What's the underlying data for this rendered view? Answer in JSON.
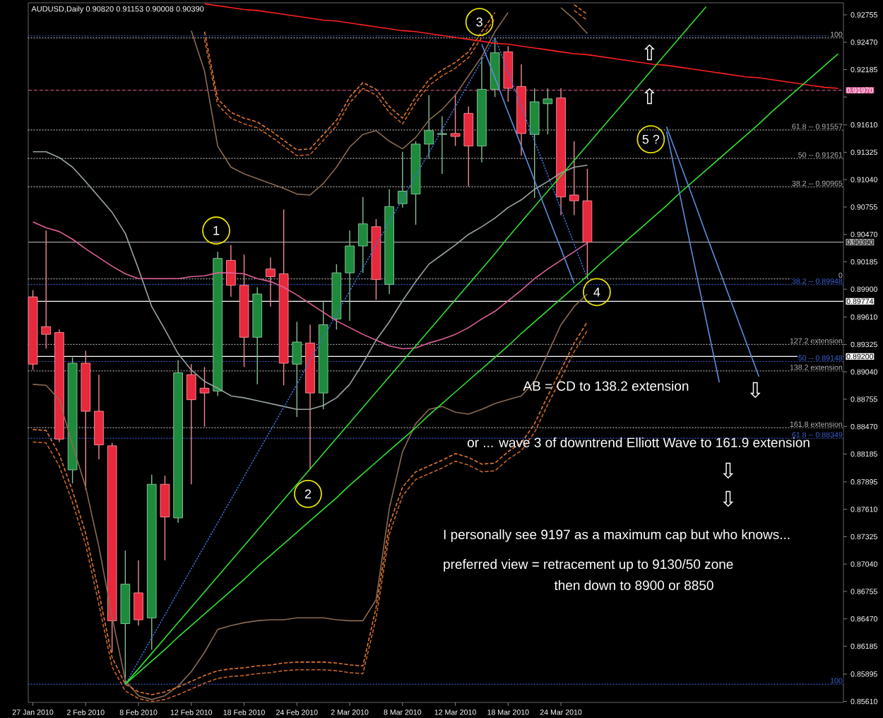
{
  "chart_data": {
    "type": "candlestick",
    "title": "AUDUSD,Daily 0.90820 0.91153 0.90008 0.90390",
    "categories": [
      "27 Jan 2010",
      null,
      null,
      null,
      "2 Feb 2010",
      null,
      null,
      null,
      "8 Feb 2010",
      null,
      null,
      null,
      "12 Feb 2010",
      null,
      null,
      null,
      "18 Feb 2010",
      null,
      null,
      null,
      "24 Feb 2010",
      null,
      null,
      null,
      "2 Mar 2010",
      null,
      null,
      null,
      "8 Mar 2010",
      null,
      null,
      null,
      "12 Mar 2010",
      null,
      null,
      null,
      "18 Mar 2010",
      null,
      null,
      null,
      "24 Mar 2010",
      null,
      null,
      null,
      null,
      null,
      null,
      null,
      null,
      null,
      null,
      null,
      null,
      null,
      null,
      null,
      null,
      null,
      null,
      null,
      null,
      null
    ],
    "ohlc": [
      [
        0.8982,
        0.8989,
        0.8906,
        0.8912
      ],
      [
        0.8951,
        0.9051,
        0.8928,
        0.8943
      ],
      [
        0.8945,
        0.8948,
        0.8831,
        0.8834
      ],
      [
        0.8802,
        0.8919,
        0.8788,
        0.8913
      ],
      [
        0.8913,
        0.8926,
        0.8781,
        0.8863
      ],
      [
        0.8863,
        0.8901,
        0.8813,
        0.8828
      ],
      [
        0.8827,
        0.883,
        0.8612,
        0.8645
      ],
      [
        0.8642,
        0.8718,
        0.8579,
        0.8683
      ],
      [
        0.8674,
        0.8708,
        0.864,
        0.8646
      ],
      [
        0.8648,
        0.8797,
        0.8615,
        0.8787
      ],
      [
        0.8787,
        0.8796,
        0.8708,
        0.8753
      ],
      [
        0.8752,
        0.8916,
        0.8747,
        0.8903
      ],
      [
        0.8901,
        0.8912,
        0.8787,
        0.8875
      ],
      [
        0.8887,
        0.8909,
        0.8847,
        0.8882
      ],
      [
        0.8884,
        0.9029,
        0.8879,
        0.9022
      ],
      [
        0.902,
        0.9036,
        0.8982,
        0.8994
      ],
      [
        0.8994,
        0.9026,
        0.8909,
        0.894
      ],
      [
        0.894,
        0.8992,
        0.8891,
        0.8985
      ],
      [
        0.9011,
        0.9023,
        0.8972,
        0.9003
      ],
      [
        0.9006,
        0.9073,
        0.889,
        0.8913
      ],
      [
        0.8912,
        0.8956,
        0.8857,
        0.8935
      ],
      [
        0.8934,
        0.8953,
        0.8803,
        0.8882
      ],
      [
        0.8882,
        0.8978,
        0.8865,
        0.8953
      ],
      [
        0.8959,
        0.9016,
        0.8948,
        0.9007
      ],
      [
        0.9007,
        0.9051,
        0.8957,
        0.9035
      ],
      [
        0.9035,
        0.9086,
        0.9007,
        0.9058
      ],
      [
        0.9055,
        0.9063,
        0.8979,
        0.9
      ],
      [
        0.8995,
        0.9094,
        0.8985,
        0.9076
      ],
      [
        0.9079,
        0.9133,
        0.9075,
        0.9092
      ],
      [
        0.9089,
        0.9144,
        0.9057,
        0.9141
      ],
      [
        0.9141,
        0.9192,
        0.9126,
        0.9155
      ],
      [
        0.9151,
        0.917,
        0.911,
        0.9152
      ],
      [
        0.9152,
        0.9193,
        0.9139,
        0.9149
      ],
      [
        0.9173,
        0.918,
        0.9097,
        0.9139
      ],
      [
        0.9139,
        0.9232,
        0.9122,
        0.9198
      ],
      [
        0.9198,
        0.9252,
        0.919,
        0.9236
      ],
      [
        0.9237,
        0.9243,
        0.9185,
        0.9199
      ],
      [
        0.9201,
        0.9224,
        0.9129,
        0.9152
      ],
      [
        0.9151,
        0.9199,
        0.9085,
        0.9185
      ],
      [
        0.9183,
        0.9199,
        0.9151,
        0.9188
      ],
      [
        0.9189,
        0.9199,
        0.9067,
        0.9086
      ],
      [
        0.9088,
        0.9144,
        0.9067,
        0.9082
      ],
      [
        0.9082,
        0.91153,
        0.90008,
        0.9039
      ],
      null,
      null,
      null,
      null,
      null,
      null,
      null,
      null,
      null,
      null,
      null,
      null,
      null,
      null,
      null,
      null,
      null,
      null,
      null
    ],
    "colors": [
      "#e8283c",
      "#e8283c",
      "#e8283c",
      "#1e8a3c",
      "#e8283c",
      "#e8283c",
      "#e8283c",
      "#1e8a3c",
      "#e8283c",
      "#1e8a3c",
      "#e8283c",
      "#1e8a3c",
      "#e8283c",
      "#e8283c",
      "#1e8a3c",
      "#e8283c",
      "#e8283c",
      "#1e8a3c",
      "#e8283c",
      "#e8283c",
      "#1e8a3c",
      "#e8283c",
      "#1e8a3c",
      "#1e8a3c",
      "#1e8a3c",
      "#1e8a3c",
      "#e8283c",
      "#1e8a3c",
      "#1e8a3c",
      "#1e8a3c",
      "#1e8a3c",
      "#1e8a3c",
      "#e8283c",
      "#e8283c",
      "#1e8a3c",
      "#1e8a3c",
      "#e8283c",
      "#e8283c",
      "#1e8a3c",
      "#1e8a3c",
      "#e8283c",
      "#e8283c",
      "#e8283c",
      null,
      null,
      null,
      null,
      null,
      null,
      null,
      null,
      null,
      null,
      null,
      null,
      null,
      null,
      null,
      null,
      null,
      null,
      null
    ],
    "ylim": [
      0.856,
      0.9288
    ],
    "yticks": [
      {
        "value": 0.92755,
        "label": "0.92755"
      },
      {
        "value": 0.9247,
        "label": "0.92470"
      },
      {
        "value": 0.92185,
        "label": "0.92185"
      },
      {
        "value": 0.919,
        "label": null
      },
      {
        "value": 0.9161,
        "label": "0.91610"
      },
      {
        "value": 0.91325,
        "label": "0.91325"
      },
      {
        "value": 0.9104,
        "label": "0.91040"
      },
      {
        "value": 0.90755,
        "label": "0.90755"
      },
      {
        "value": 0.9047,
        "label": "0.90470"
      },
      {
        "value": 0.90185,
        "label": "0.90185"
      },
      {
        "value": 0.899,
        "label": "0.89900"
      },
      {
        "value": 0.8961,
        "label": "0.89610"
      },
      {
        "value": 0.89325,
        "label": "0.89325"
      },
      {
        "value": 0.8904,
        "label": "0.89040"
      },
      {
        "value": 0.88755,
        "label": "0.88755"
      },
      {
        "value": 0.8847,
        "label": "0.88470"
      },
      {
        "value": 0.88185,
        "label": "0.88185"
      },
      {
        "value": 0.87895,
        "label": "0.87895"
      },
      {
        "value": 0.8761,
        "label": "0.87610"
      },
      {
        "value": 0.87325,
        "label": "0.87325"
      },
      {
        "value": 0.8704,
        "label": "0.87040"
      },
      {
        "value": 0.86755,
        "label": "0.86755"
      },
      {
        "value": 0.8647,
        "label": "0.86470"
      },
      {
        "value": 0.86185,
        "label": "0.86185"
      },
      {
        "value": 0.85895,
        "label": "0.85895"
      },
      {
        "value": 0.8561,
        "label": "0.85610"
      }
    ],
    "series": [
      {
        "type": "line",
        "color": "#e0609a",
        "line_style": "solid",
        "values": [
          0.906,
          0.9054,
          0.905,
          0.9042,
          0.9032,
          0.9023,
          0.9014,
          0.9006,
          0.9001,
          0.9001,
          0.9001,
          0.9001,
          0.9003,
          0.9004,
          0.9007,
          0.9007,
          0.9006,
          0.9001,
          0.8998,
          0.8992,
          0.8984,
          0.8975,
          0.8966,
          0.8957,
          0.895,
          0.8943,
          0.8937,
          0.8931,
          0.8928,
          0.8929,
          0.8934,
          0.8938,
          0.8943,
          0.895,
          0.8959,
          0.8967,
          0.8978,
          0.8989,
          0.9001,
          0.9011,
          0.902,
          0.9029,
          0.9038,
          null,
          null,
          null,
          null,
          null,
          null,
          null,
          null,
          null,
          null,
          null,
          null,
          null,
          null,
          null,
          null,
          null,
          null,
          null
        ]
      },
      {
        "type": "line",
        "color": "#9aa4a4",
        "line_style": "solid",
        "values": [
          0.9133,
          0.9133,
          0.9127,
          0.9117,
          0.9102,
          0.9086,
          0.907,
          0.9048,
          0.9011,
          0.8972,
          0.8948,
          0.8923,
          0.8906,
          0.8894,
          0.8887,
          0.8879,
          0.8877,
          0.8874,
          0.8871,
          0.8868,
          0.8865,
          0.8865,
          0.8869,
          0.8877,
          0.8891,
          0.8913,
          0.8937,
          0.8956,
          0.8978,
          0.8998,
          0.9016,
          0.9026,
          0.9036,
          0.9047,
          0.9055,
          0.9064,
          0.9075,
          0.9083,
          0.9094,
          0.9102,
          0.9111,
          0.9117,
          0.9119,
          null,
          null,
          null,
          null,
          null,
          null,
          null,
          null,
          null,
          null,
          null,
          null,
          null,
          null,
          null,
          null,
          null,
          null,
          null
        ]
      },
      {
        "type": "line",
        "color": "#8a6a52",
        "line_style": "solid",
        "values": [
          null,
          null,
          null,
          null,
          null,
          null,
          null,
          null,
          null,
          null,
          null,
          null,
          0.9259,
          0.9217,
          0.9139,
          0.9117,
          0.911,
          0.9105,
          0.91,
          0.9095,
          0.9089,
          0.9088,
          0.91,
          0.9117,
          0.9138,
          0.9151,
          0.9155,
          0.9144,
          0.9136,
          0.9148,
          0.9166,
          0.9177,
          0.9192,
          0.9212,
          0.9232,
          0.9258,
          0.9278,
          null,
          null,
          null,
          null,
          null,
          null,
          null,
          null,
          null,
          null,
          null,
          null,
          null,
          null,
          null,
          null,
          null,
          null,
          null,
          null,
          null,
          null,
          null,
          null,
          null
        ]
      },
      {
        "type": "line",
        "color": "#8a6a52",
        "line_style": "solid",
        "values": [
          0.8891,
          0.889,
          0.8875,
          0.8828,
          0.8784,
          0.8722,
          0.8649,
          0.8583,
          0.8567,
          0.8563,
          0.8567,
          0.8577,
          0.8592,
          0.8612,
          0.8636,
          0.864,
          0.8643,
          0.8645,
          0.8646,
          0.8646,
          0.8648,
          0.8648,
          0.8648,
          0.8646,
          0.8645,
          0.8645,
          0.8667,
          0.8762,
          0.8821,
          0.885,
          0.8865,
          0.8868,
          0.8862,
          0.886,
          0.8865,
          0.8871,
          0.8875,
          0.8879,
          0.8894,
          0.8923,
          0.8953,
          0.8972,
          0.8985,
          null,
          null,
          null,
          null,
          null,
          null,
          null,
          null,
          null,
          null,
          null,
          null,
          null,
          null,
          null,
          null,
          null,
          null,
          null
        ]
      },
      {
        "type": "line",
        "color": "#e07830",
        "line_style": "dashed",
        "values": [
          null,
          null,
          null,
          null,
          null,
          null,
          null,
          null,
          null,
          null,
          null,
          null,
          null,
          0.9258,
          0.9188,
          0.9174,
          0.9168,
          0.9164,
          0.9155,
          0.9145,
          0.9135,
          0.9136,
          0.9151,
          0.9166,
          0.919,
          0.9205,
          0.9198,
          0.918,
          0.9168,
          0.919,
          0.9208,
          0.9218,
          0.9226,
          0.9237,
          0.9258,
          0.9278,
          null,
          null,
          null,
          null,
          null,
          0.9286,
          0.9276,
          null,
          null,
          null,
          null,
          null,
          null,
          null,
          null,
          null,
          null,
          null,
          null,
          null,
          null,
          null,
          null,
          null,
          null,
          null
        ]
      },
      {
        "type": "line",
        "color": "#c8642a",
        "line_style": "dashed",
        "values": [
          null,
          null,
          null,
          null,
          null,
          null,
          null,
          null,
          null,
          null,
          null,
          null,
          null,
          0.925,
          0.9182,
          0.9168,
          0.9162,
          0.9158,
          0.9149,
          0.9139,
          0.9129,
          0.913,
          0.9145,
          0.916,
          0.9184,
          0.9199,
          0.9192,
          0.9174,
          0.9162,
          0.9184,
          0.9202,
          0.9212,
          0.922,
          0.9231,
          0.9252,
          0.9272,
          null,
          null,
          null,
          null,
          null,
          0.928,
          0.927,
          null,
          null,
          null,
          null,
          null,
          null,
          null,
          null,
          null,
          null,
          null,
          null,
          null,
          null,
          null,
          null,
          null,
          null,
          null
        ]
      },
      {
        "type": "line",
        "color": "#e07830",
        "line_style": "dashed",
        "values": [
          0.8844,
          0.8843,
          0.8818,
          0.878,
          0.8736,
          0.8674,
          0.8607,
          0.8579,
          0.8571,
          0.8568,
          0.8571,
          0.8576,
          0.8582,
          0.8588,
          0.8593,
          0.8595,
          0.8596,
          0.8598,
          0.8599,
          0.8601,
          0.8602,
          0.8602,
          0.8602,
          0.8601,
          0.8599,
          0.8598,
          0.8659,
          0.8745,
          0.8784,
          0.88,
          0.8806,
          0.8812,
          0.8819,
          0.8815,
          0.8808,
          0.8809,
          0.8821,
          0.883,
          0.885,
          0.8879,
          0.8906,
          0.8934,
          0.8956,
          null,
          null,
          null,
          null,
          null,
          null,
          null,
          null,
          null,
          null,
          null,
          null,
          null,
          null,
          null,
          null,
          null,
          null,
          null
        ]
      },
      {
        "type": "line",
        "color": "#c8642a",
        "line_style": "dashed",
        "values": [
          0.8831,
          0.883,
          0.8806,
          0.8768,
          0.8724,
          0.8662,
          0.8597,
          0.8572,
          0.8564,
          0.8561,
          0.8563,
          0.8568,
          0.8574,
          0.858,
          0.8585,
          0.8587,
          0.8588,
          0.859,
          0.8591,
          0.8593,
          0.8594,
          0.8594,
          0.8594,
          0.8593,
          0.8591,
          0.859,
          0.8648,
          0.8735,
          0.8775,
          0.8792,
          0.8798,
          0.8804,
          0.8811,
          0.8807,
          0.88,
          0.8801,
          0.8813,
          0.8822,
          0.8841,
          0.887,
          0.8897,
          0.8925,
          0.8947,
          null,
          null,
          null,
          null,
          null,
          null,
          null,
          null,
          null,
          null,
          null,
          null,
          null,
          null,
          null,
          null,
          null,
          null,
          null
        ]
      },
      {
        "type": "line",
        "color": "#3a6ed8",
        "line_style": "dotted",
        "values": [
          null,
          null,
          null,
          null,
          null,
          null,
          null,
          0.8579,
          0.8603,
          0.8627,
          0.8651,
          0.8675,
          0.8699,
          0.8723,
          0.8747,
          0.8771,
          0.8795,
          0.8819,
          0.8843,
          0.8867,
          0.8891,
          0.8916,
          0.894,
          0.8964,
          0.8988,
          0.9012,
          0.9036,
          0.906,
          0.9084,
          0.9108,
          0.9132,
          0.9156,
          0.918,
          0.9204,
          0.9228,
          0.9252,
          0.9216,
          0.918,
          0.9144,
          0.9109,
          0.9073,
          0.9037,
          0.9001,
          null,
          null,
          null,
          null,
          null,
          null,
          null,
          null,
          null,
          null,
          null,
          null,
          null,
          null,
          null,
          null,
          null,
          null,
          null
        ]
      },
      {
        "type": "line",
        "color": "#ff2020",
        "line_style": "solid",
        "values": [
          null,
          null,
          null,
          null,
          null,
          null,
          null,
          null,
          null,
          null,
          null,
          null,
          null,
          0.9287,
          0.9285,
          0.9283,
          0.9281,
          0.928,
          0.9278,
          0.9276,
          0.9274,
          0.9272,
          0.927,
          0.9269,
          0.9267,
          0.9265,
          0.9263,
          0.9261,
          0.9259,
          0.9258,
          0.9256,
          0.9254,
          0.9252,
          0.925,
          0.9248,
          0.9246,
          0.9245,
          0.9243,
          0.9241,
          0.9239,
          0.9237,
          0.9235,
          0.9234,
          0.9232,
          0.923,
          0.9228,
          0.9226,
          0.9224,
          0.9223,
          0.9221,
          0.9219,
          0.9217,
          0.9215,
          0.9213,
          0.9211,
          0.921,
          0.9208,
          0.9206,
          0.9204,
          0.9202,
          0.92,
          0.9199
        ]
      },
      {
        "type": "line",
        "color": "#30e030",
        "line_style": "solid",
        "values": [
          null,
          null,
          null,
          null,
          null,
          null,
          null,
          0.8579,
          0.8595,
          0.8611,
          0.8627,
          0.8643,
          0.8659,
          0.8675,
          0.8691,
          0.8707,
          0.8723,
          0.8739,
          0.8755,
          0.8771,
          0.8787,
          0.8803,
          0.8819,
          0.8835,
          0.8851,
          0.8867,
          0.8883,
          0.8899,
          0.8915,
          0.8931,
          0.8947,
          0.8963,
          0.8979,
          0.8995,
          0.9011,
          0.9027,
          0.9044,
          0.906,
          0.9076,
          0.9092,
          0.9108,
          0.9124,
          0.914,
          0.9156,
          0.9172,
          0.9188,
          0.9204,
          0.922,
          0.9236,
          0.9252,
          0.9268,
          0.9284,
          null,
          null,
          null,
          null,
          null,
          null,
          null,
          null,
          null,
          null
        ]
      },
      {
        "type": "line",
        "color": "#30e030",
        "line_style": "solid",
        "values": [
          null,
          null,
          null,
          null,
          null,
          null,
          null,
          0.8579,
          0.8591,
          0.8603,
          0.8615,
          0.8628,
          0.864,
          0.8652,
          0.8664,
          0.8676,
          0.8688,
          0.8701,
          0.8713,
          0.8725,
          0.8737,
          0.8749,
          0.8761,
          0.8773,
          0.8786,
          0.8798,
          0.881,
          0.8822,
          0.8834,
          0.8846,
          0.8859,
          0.8871,
          0.8883,
          0.8895,
          0.8907,
          0.8919,
          0.8931,
          0.8944,
          0.8956,
          0.8968,
          0.898,
          0.8992,
          0.9004,
          0.9017,
          0.9029,
          0.9041,
          0.9053,
          0.9065,
          0.9077,
          0.909,
          0.9102,
          0.9114,
          0.9126,
          0.9138,
          0.915,
          0.9162,
          0.9175,
          0.9187,
          0.9199,
          0.9211,
          0.9223,
          0.9235
        ]
      },
      {
        "type": "line",
        "color": "#5a8ee0",
        "line_style": "solid",
        "values": [
          null,
          null,
          null,
          null,
          null,
          null,
          null,
          null,
          null,
          null,
          null,
          null,
          null,
          null,
          null,
          null,
          null,
          null,
          null,
          null,
          null,
          null,
          null,
          null,
          null,
          null,
          null,
          null,
          null,
          null,
          null,
          null,
          null,
          null,
          0.9245,
          0.921,
          0.9174,
          0.9139,
          0.9103,
          0.9067,
          0.9032,
          0.8996,
          null,
          null,
          null,
          null,
          null,
          null,
          null,
          null,
          null,
          null,
          null,
          null,
          null,
          null,
          null,
          null,
          null,
          null,
          null,
          null
        ]
      },
      {
        "type": "line",
        "color": "#5a8ee0",
        "line_style": "solid",
        "values": [
          null,
          null,
          null,
          null,
          null,
          null,
          null,
          null,
          null,
          null,
          null,
          null,
          null,
          null,
          null,
          null,
          null,
          null,
          null,
          null,
          null,
          null,
          null,
          null,
          null,
          null,
          null,
          null,
          null,
          null,
          null,
          null,
          null,
          null,
          null,
          null,
          null,
          null,
          null,
          null,
          null,
          null,
          null,
          null,
          null,
          null,
          null,
          null,
          0.9154,
          0.9089,
          0.9023,
          0.8958,
          0.8893,
          null,
          null,
          null,
          null,
          null,
          null,
          null,
          null,
          null
        ]
      },
      {
        "type": "line",
        "color": "#5a8ee0",
        "line_style": "solid",
        "values": [
          null,
          null,
          null,
          null,
          null,
          null,
          null,
          null,
          null,
          null,
          null,
          null,
          null,
          null,
          null,
          null,
          null,
          null,
          null,
          null,
          null,
          null,
          null,
          null,
          null,
          null,
          null,
          null,
          null,
          null,
          null,
          null,
          null,
          null,
          null,
          null,
          null,
          null,
          null,
          null,
          null,
          null,
          null,
          null,
          null,
          null,
          null,
          null,
          0.9159,
          0.9122,
          0.9085,
          0.9047,
          0.901,
          0.8973,
          0.8936,
          0.8899,
          null,
          null,
          null,
          null,
          null,
          null
        ]
      },
      {
        "type": "line",
        "color": "#8a6a52",
        "line_style": "solid",
        "values": [
          null,
          null,
          null,
          null,
          null,
          null,
          null,
          null,
          null,
          null,
          null,
          null,
          null,
          null,
          null,
          null,
          null,
          null,
          null,
          null,
          null,
          null,
          null,
          null,
          null,
          null,
          null,
          null,
          null,
          null,
          null,
          null,
          null,
          null,
          null,
          null,
          null,
          null,
          null,
          null,
          0.9283,
          0.9271,
          0.9256,
          null,
          null,
          null,
          null,
          null,
          null,
          null,
          null,
          null,
          null,
          null,
          null,
          null,
          null,
          null,
          null,
          null,
          null,
          null
        ]
      }
    ],
    "ref_lines": [
      {
        "axis": "y",
        "value": 0.92536,
        "color": "#3a5fcd",
        "line_style": "dotted"
      },
      {
        "axis": "y",
        "value": 0.92515,
        "color": "#b4b4b4",
        "line_style": "dotted"
      },
      {
        "axis": "y",
        "value": 0.91557,
        "color": "#b4b4b4",
        "line_style": "dotted"
      },
      {
        "axis": "y",
        "value": 0.91261,
        "color": "#b4b4b4",
        "line_style": "dotted"
      },
      {
        "axis": "y",
        "value": 0.90965,
        "color": "#b4b4b4",
        "line_style": "dotted"
      },
      {
        "axis": "y",
        "value": 0.90008,
        "color": "#b4b4b4",
        "line_style": "dotted"
      },
      {
        "axis": "y",
        "value": 0.89948,
        "color": "#3a5fcd",
        "line_style": "dotted"
      },
      {
        "axis": "y",
        "value": 0.89326,
        "color": "#b4b4b4",
        "line_style": "dotted"
      },
      {
        "axis": "y",
        "value": 0.89148,
        "color": "#3a5fcd",
        "line_style": "dotted"
      },
      {
        "axis": "y",
        "value": 0.8905,
        "color": "#b4b4b4",
        "line_style": "dotted"
      },
      {
        "axis": "y",
        "value": 0.88459,
        "color": "#b4b4b4",
        "line_style": "dotted"
      },
      {
        "axis": "y",
        "value": 0.88349,
        "color": "#3a5fcd",
        "line_style": "dotted"
      },
      {
        "axis": "y",
        "value": 0.8579,
        "color": "#3a5fcd",
        "line_style": "dotted"
      },
      {
        "axis": "y",
        "value": 0.9197,
        "label": "0.91970",
        "color": "#e0609a",
        "line_style": "dashed"
      },
      {
        "axis": "y",
        "value": 0.9039,
        "label": "0.90390",
        "color": "#a0a0a0",
        "line_style": "solid"
      },
      {
        "axis": "y",
        "value": 0.89774,
        "label": "0.89774",
        "color": "#ffffff",
        "line_style": "solid"
      },
      {
        "axis": "y",
        "value": 0.892,
        "label": "0.89200",
        "color": "#ffffff",
        "line_style": "solid"
      }
    ],
    "annotations": [
      {
        "text": "1",
        "y": 0.9051
      },
      {
        "text": "2",
        "y": 0.8777
      },
      {
        "text": "3",
        "y": 0.9268
      },
      {
        "text": "4",
        "y": 0.8987
      },
      {
        "text": "5 ?",
        "y": 0.9146
      },
      {
        "text": "100",
        "y": 0.92515
      },
      {
        "text": "61.8 -- 0.91557",
        "y": 0.91557
      },
      {
        "text": "50 -- 0.91261",
        "y": 0.91261
      },
      {
        "text": "38.2 -- 0.90965",
        "y": 0.90965
      },
      {
        "text": "0",
        "y": 0.90008
      },
      {
        "text": "38.2 -- 0.89948",
        "y": 0.89948
      },
      {
        "text": "127.2 extension",
        "y": 0.89326
      },
      {
        "text": "50 -- 0.89148",
        "y": 0.89148
      },
      {
        "text": "138.2 extension",
        "y": 0.8905
      },
      {
        "text": "161.8 extension",
        "y": 0.88459
      },
      {
        "text": "61.8 -- 0.88349",
        "y": 0.88349
      },
      {
        "text": "100",
        "y": 0.8579
      },
      "⇧",
      "⇧",
      "⇩",
      "⇩",
      "⇩",
      "AB = CD to 138.2 extension",
      "or ... wave 3 of downtrend Elliott Wave to 161.9 extension",
      "I personally see 9197 as a maximum cap but who knows...",
      "preferred view = retracement up to 9130/50 zone",
      "then down to 8900 or 8850"
    ]
  }
}
